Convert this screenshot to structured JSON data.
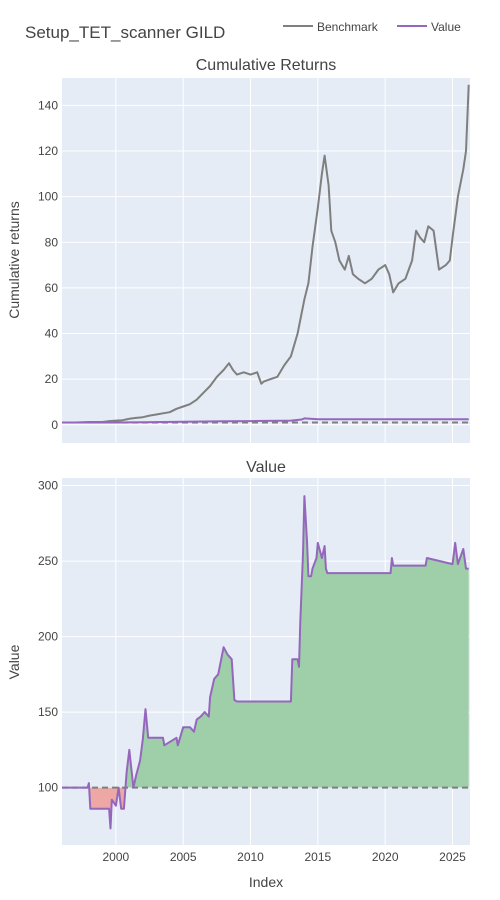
{
  "chart_data": [
    {
      "type": "line",
      "title": "Cumulative Returns",
      "xlabel": "",
      "ylabel": "Cumulative returns",
      "xlim": [
        1996.0,
        2026.3
      ],
      "ylim": [
        -8,
        152
      ],
      "yticks": [
        0,
        20,
        40,
        60,
        80,
        100,
        120,
        140
      ],
      "xticks": [
        2000,
        2005,
        2010,
        2015,
        2020,
        2025
      ],
      "grid": true,
      "baseline": 1,
      "series": [
        {
          "name": "Benchmark",
          "color": "#7f7f7f",
          "x": [
            1996.0,
            1997.0,
            1998.0,
            1999.0,
            1999.5,
            2000.0,
            2000.5,
            2001.0,
            2001.5,
            2002.0,
            2002.5,
            2003.0,
            2003.5,
            2004.0,
            2004.5,
            2005.0,
            2005.5,
            2006.0,
            2006.5,
            2007.0,
            2007.5,
            2008.0,
            2008.4,
            2008.7,
            2009.0,
            2009.5,
            2010.0,
            2010.5,
            2010.8,
            2011.0,
            2011.5,
            2012.0,
            2012.5,
            2013.0,
            2013.5,
            2014.0,
            2014.3,
            2014.6,
            2015.0,
            2015.3,
            2015.5,
            2015.8,
            2016.0,
            2016.3,
            2016.6,
            2017.0,
            2017.3,
            2017.6,
            2018.0,
            2018.5,
            2019.0,
            2019.5,
            2020.0,
            2020.3,
            2020.6,
            2021.0,
            2021.5,
            2022.0,
            2022.3,
            2022.6,
            2022.9,
            2023.2,
            2023.6,
            2024.0,
            2024.5,
            2024.8,
            2025.0,
            2025.4,
            2025.8,
            2026.0,
            2026.2
          ],
          "values": [
            1,
            1,
            1.2,
            1.2,
            1.6,
            1.8,
            2.0,
            2.6,
            3.0,
            3.3,
            4.0,
            4.5,
            5.0,
            5.5,
            7.0,
            8.0,
            9.0,
            11.0,
            14.0,
            17.0,
            21.0,
            24.0,
            27.0,
            24.0,
            22.0,
            23.0,
            22.0,
            23.0,
            18.0,
            19.0,
            20.0,
            21.0,
            26.0,
            30.0,
            40.0,
            55.0,
            62.0,
            78.0,
            95.0,
            110.0,
            118.0,
            105.0,
            85.0,
            80.0,
            72.0,
            68.0,
            74.0,
            66.0,
            64.0,
            62.0,
            64.0,
            68.0,
            70.0,
            66.0,
            58.0,
            62.0,
            64.0,
            72.0,
            85.0,
            82.0,
            80.0,
            87.0,
            85.0,
            68.0,
            70.0,
            72.0,
            82.0,
            100.0,
            112.0,
            120.0,
            149.0
          ]
        },
        {
          "name": "Value",
          "color": "#9467bd",
          "x": [
            1996.0,
            2000.0,
            2002.0,
            2005.0,
            2008.0,
            2010.0,
            2013.0,
            2013.8,
            2014.0,
            2015.0,
            2020.0,
            2026.2
          ],
          "values": [
            1.0,
            1.0,
            1.1,
            1.3,
            1.5,
            1.6,
            1.8,
            2.3,
            2.8,
            2.4,
            2.4,
            2.4
          ]
        }
      ]
    },
    {
      "type": "area",
      "title": "Value",
      "xlabel": "Index",
      "ylabel": "Value",
      "xlim": [
        1996.0,
        2026.3
      ],
      "ylim": [
        62,
        305
      ],
      "yticks": [
        100,
        150,
        200,
        250,
        300
      ],
      "xticks": [
        2000,
        2005,
        2010,
        2015,
        2020,
        2025
      ],
      "grid": true,
      "baseline": 100,
      "positive_fill": "#9fcfa9",
      "negative_fill": "#eda7a4",
      "series": [
        {
          "name": "Value",
          "color": "#9467bd",
          "x": [
            1996.0,
            1997.9,
            1998.0,
            1998.1,
            1999.5,
            1999.6,
            1999.7,
            2000.0,
            2000.2,
            2000.4,
            2000.6,
            2000.8,
            2001.0,
            2001.3,
            2001.5,
            2001.8,
            2002.0,
            2002.2,
            2002.4,
            2002.6,
            2003.5,
            2003.6,
            2004.5,
            2004.6,
            2005.0,
            2005.2,
            2005.5,
            2005.8,
            2006.0,
            2006.3,
            2006.6,
            2006.9,
            2007.0,
            2007.3,
            2007.6,
            2008.0,
            2008.3,
            2008.6,
            2008.8,
            2009.0,
            2013.0,
            2013.1,
            2013.5,
            2013.6,
            2013.7,
            2013.9,
            2014.0,
            2014.2,
            2014.3,
            2014.5,
            2014.6,
            2014.9,
            2015.0,
            2015.3,
            2015.5,
            2015.6,
            2015.7,
            2020.4,
            2020.5,
            2020.6,
            2023.0,
            2023.1,
            2025.0,
            2025.2,
            2025.4,
            2025.8,
            2026.0,
            2026.2
          ],
          "values": [
            100,
            100,
            103,
            86,
            86,
            73,
            92,
            88,
            100,
            86,
            86,
            110,
            125,
            100,
            108,
            118,
            132,
            152,
            133,
            133,
            133,
            128,
            133,
            128,
            140,
            140,
            140,
            137,
            145,
            147,
            150,
            147,
            160,
            172,
            175,
            193,
            188,
            185,
            158,
            157,
            157,
            185,
            185,
            180,
            210,
            255,
            293,
            262,
            240,
            240,
            245,
            252,
            262,
            252,
            260,
            245,
            242,
            242,
            252,
            247,
            247,
            252,
            248,
            262,
            248,
            258,
            245,
            245
          ]
        }
      ]
    }
  ],
  "header": {
    "title": "Setup_TET_scanner GILD"
  },
  "legend": {
    "items": [
      "Benchmark",
      "Value"
    ],
    "placement": "top-right"
  }
}
